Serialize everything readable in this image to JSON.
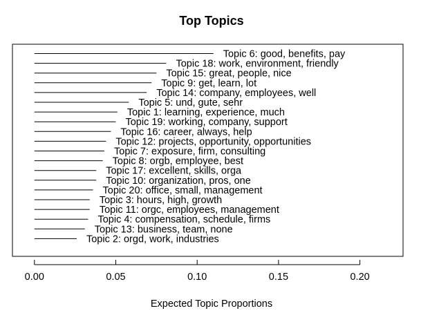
{
  "chart_data": {
    "type": "bar",
    "title": "Top Topics",
    "xlabel": "Expected Topic Proportions",
    "ylabel": "",
    "xlim": [
      -0.0135,
      0.2265
    ],
    "xticks": [
      0.0,
      0.05,
      0.1,
      0.15,
      0.2
    ],
    "xtick_labels": [
      "0.00",
      "0.05",
      "0.10",
      "0.15",
      "0.20"
    ],
    "grid": false,
    "legend": "none",
    "orientation": "horizontal",
    "categories": [
      "Topic 6: good, benefits, pay",
      "Topic 18: work, environment, friendly",
      "Topic 15: great, people, nice",
      "Topic 9: get, learn, lot",
      "Topic 14: company, employees, well",
      "Topic 5: und, gute, sehr",
      "Topic 1: learning, experience, much",
      "Topic 19: working, company, support",
      "Topic 16: career, always, help",
      "Topic 12: projects, opportunity, opportunities",
      "Topic 7: exposure, firm, consulting",
      "Topic 8: orgb, employee, best",
      "Topic 17: excellent, skills, orga",
      "Topic 10: organization, pros, one",
      "Topic 20: office, small, management",
      "Topic 3: hours, high, growth",
      "Topic 11: orgc, employees, management",
      "Topic 4: compensation, schedule, firms",
      "Topic 13: business, team, none",
      "Topic 2: orgd, work, industries"
    ],
    "values": [
      0.11,
      0.081,
      0.075,
      0.072,
      0.069,
      0.058,
      0.051,
      0.05,
      0.047,
      0.044,
      0.043,
      0.042,
      0.038,
      0.038,
      0.036,
      0.034,
      0.034,
      0.033,
      0.031,
      0.026
    ],
    "colors": {
      "line": "#000000",
      "text": "#000000",
      "background": "#ffffff"
    }
  }
}
